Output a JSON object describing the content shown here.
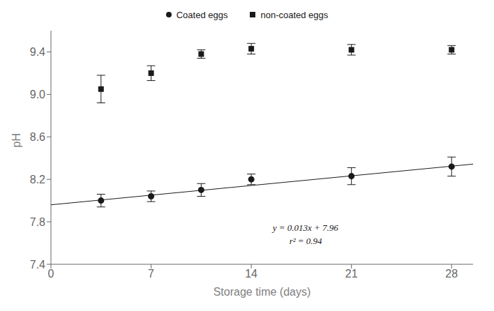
{
  "chart_data": {
    "type": "scatter",
    "xlabel": "Storage time (days)",
    "ylabel": "pH",
    "xlim": [
      0,
      29.5
    ],
    "ylim": [
      7.4,
      9.6
    ],
    "xticks": [
      0,
      7,
      14,
      21,
      28
    ],
    "yticks": [
      7.4,
      7.8,
      8.2,
      8.6,
      {
        "value": 9,
        "label": "9.0"
      },
      9.4
    ],
    "grid": false,
    "legend": "top",
    "series": [
      {
        "name": "Coated eggs",
        "type": "scatter",
        "marker": "circle",
        "color": "#1a1a1a",
        "x": [
          3.5,
          7,
          10.5,
          14,
          21,
          28
        ],
        "values": [
          8.0,
          8.04,
          8.1,
          8.2,
          8.23,
          8.32
        ],
        "yerr": [
          0.06,
          0.05,
          0.06,
          0.05,
          0.08,
          0.09
        ]
      },
      {
        "name": "non-coated eggs",
        "type": "scatter",
        "marker": "square",
        "color": "#1a1a1a",
        "x": [
          3.5,
          7,
          10.5,
          14,
          21,
          28
        ],
        "values": [
          9.05,
          9.2,
          9.38,
          9.43,
          9.42,
          9.42
        ],
        "yerr": [
          0.13,
          0.07,
          0.04,
          0.05,
          0.05,
          0.04
        ]
      },
      {
        "type": "line",
        "line_style": "solid",
        "color": "#1a1a1a",
        "x": [
          0,
          29.5
        ],
        "values": [
          7.96,
          8.3435
        ]
      }
    ],
    "annotations": [
      {
        "text": "y = 0.013x + 7.96",
        "color": "#1a1a1a"
      },
      {
        "text": "r² = 0.94",
        "color": "#1a1a1a"
      }
    ]
  }
}
